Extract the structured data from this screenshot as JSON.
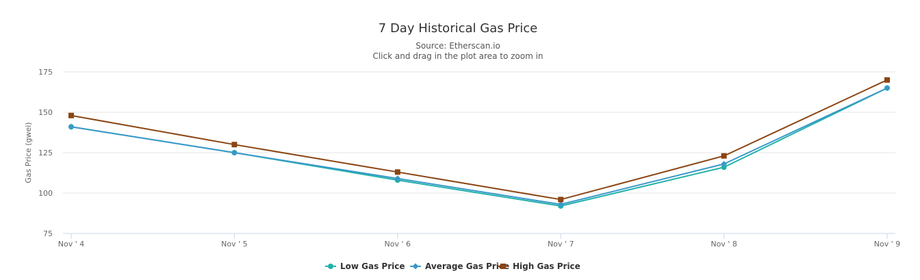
{
  "chart_data": {
    "type": "line",
    "title": "7 Day Historical Gas Price",
    "subtitle_lines": [
      "Source: Etherscan.io",
      "Click and drag in the plot area to zoom in"
    ],
    "xlabel": "",
    "ylabel": "Gas Price (gwei)",
    "categories": [
      "Nov ' 4",
      "Nov ' 5",
      "Nov ' 6",
      "Nov ' 7",
      "Nov ' 8",
      "Nov ' 9"
    ],
    "y_ticks": [
      75,
      100,
      125,
      150,
      175
    ],
    "ylim": [
      75,
      175
    ],
    "grid": true,
    "legend_position": "bottom",
    "series": [
      {
        "name": "Low Gas Price",
        "values": [
          141,
          125,
          108,
          92,
          116,
          165
        ],
        "color": "#20b2aa",
        "marker": "circle"
      },
      {
        "name": "Average Gas Price",
        "values": [
          141,
          125,
          109,
          93,
          118,
          165
        ],
        "color": "#3a98c9",
        "marker": "diamond"
      },
      {
        "name": "High Gas Price",
        "values": [
          148,
          130,
          113,
          96,
          123,
          170
        ],
        "color": "#8b4513",
        "marker": "square"
      }
    ]
  }
}
